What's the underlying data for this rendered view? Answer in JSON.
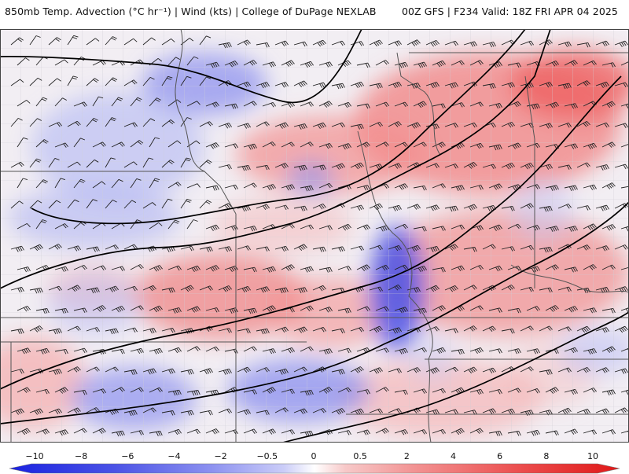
{
  "header": {
    "title_left": "850mb Temp. Advection (°C hr⁻¹) | Wind (kts) | College of DuPage NEXLAB",
    "title_right": "00Z GFS | F234 Valid: 18Z FRI APR 04 2025"
  },
  "colorbar": {
    "ticks": [
      "−10",
      "−8",
      "−6",
      "−4",
      "−2",
      "−0.5",
      "0",
      "0.5",
      "2",
      "4",
      "6",
      "8",
      "10"
    ],
    "cold_color": "#2f3cf0",
    "neutral_color": "#ffffff",
    "warm_color": "#e82222"
  },
  "map": {
    "field": "850mb temperature advection",
    "overlays": [
      "wind barbs",
      "state borders",
      "county borders",
      "isotherms"
    ]
  }
}
